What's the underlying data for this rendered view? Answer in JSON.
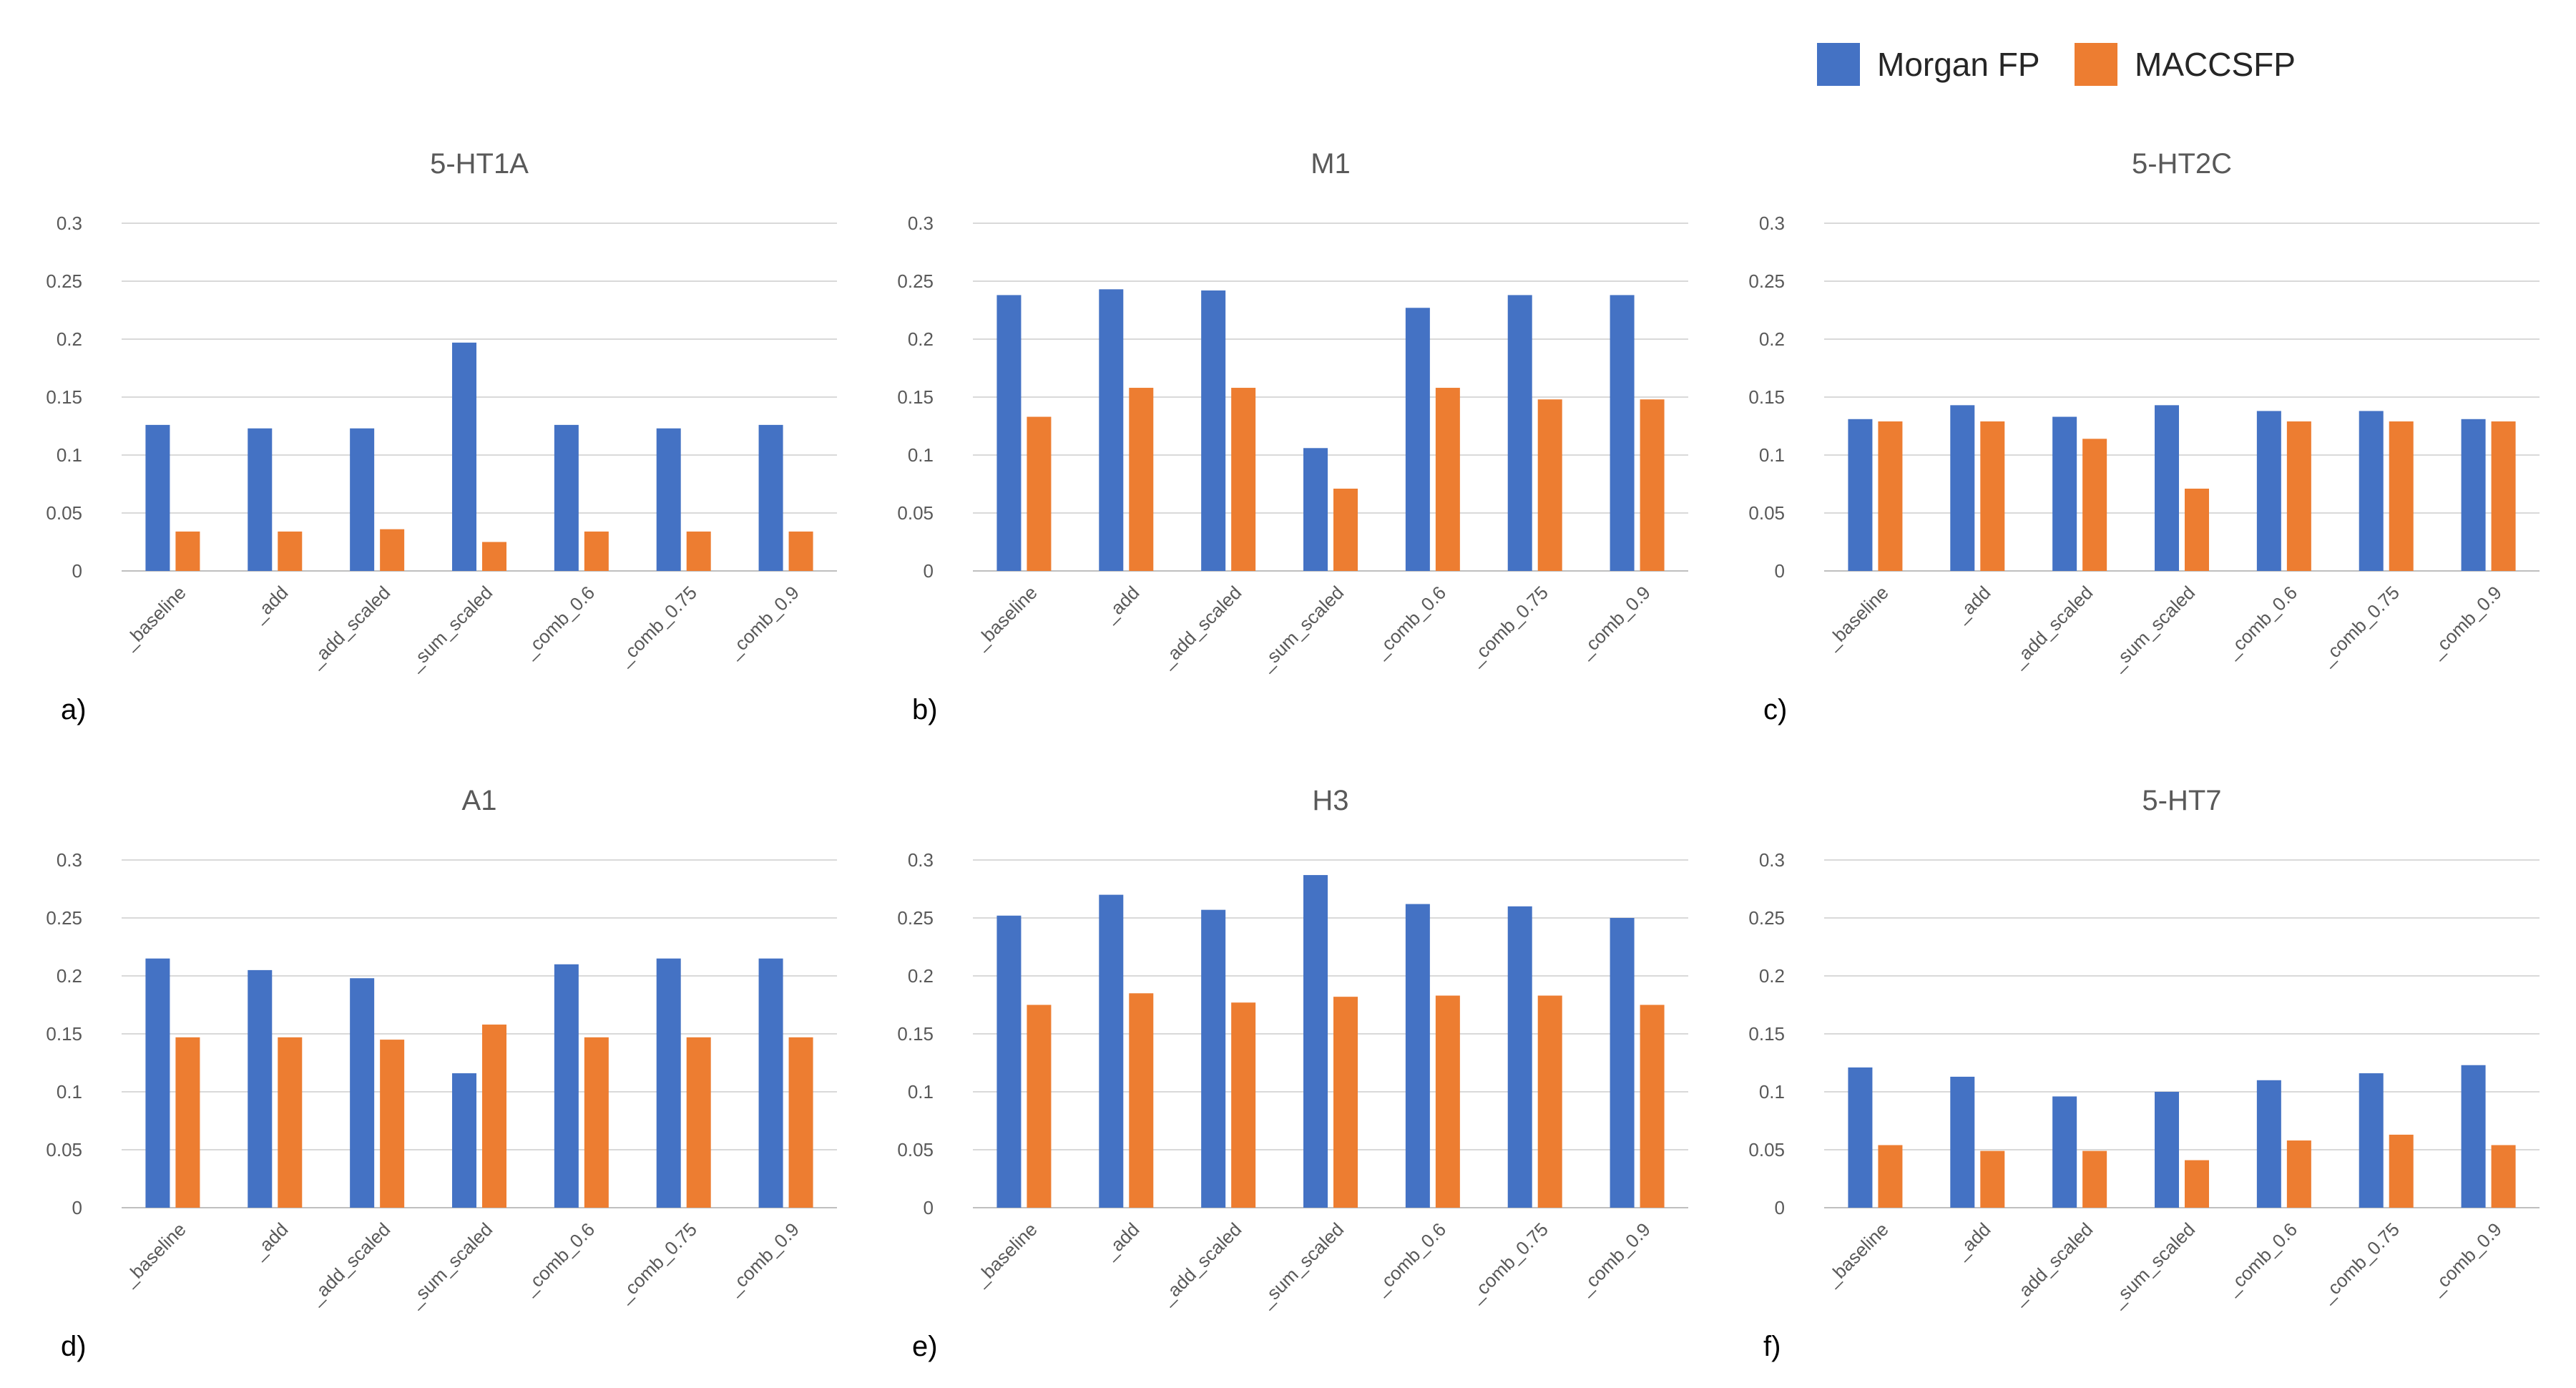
{
  "legend": {
    "items": [
      {
        "label": "Morgan FP",
        "color": "#4472C4"
      },
      {
        "label": "MACCSFP",
        "color": "#ED7D31"
      }
    ]
  },
  "panels": [
    {
      "letter": "a)"
    },
    {
      "letter": "b)"
    },
    {
      "letter": "c)"
    },
    {
      "letter": "d)"
    },
    {
      "letter": "e)"
    },
    {
      "letter": "f)"
    }
  ],
  "chart_data": [
    {
      "type": "bar",
      "title": "5-HT1A",
      "categories": [
        "_baseline",
        "_add",
        "_add_scaled",
        "_sum_scaled",
        "_comb_0.6",
        "_comb_0.75",
        "_comb_0.9"
      ],
      "series": [
        {
          "name": "Morgan FP",
          "color": "#4472C4",
          "values": [
            0.126,
            0.123,
            0.123,
            0.197,
            0.126,
            0.123,
            0.126
          ]
        },
        {
          "name": "MACCSFP",
          "color": "#ED7D31",
          "values": [
            0.034,
            0.034,
            0.036,
            0.025,
            0.034,
            0.034,
            0.034
          ]
        }
      ],
      "ylim": [
        0,
        0.3
      ],
      "yticks": [
        "0",
        "0.05",
        "0.1",
        "0.15",
        "0.2",
        "0.25",
        "0.3"
      ],
      "grid": true
    },
    {
      "type": "bar",
      "title": "M1",
      "categories": [
        "_baseline",
        "_add",
        "_add_scaled",
        "_sum_scaled",
        "_comb_0.6",
        "_comb_0.75",
        "_comb_0.9"
      ],
      "series": [
        {
          "name": "Morgan FP",
          "color": "#4472C4",
          "values": [
            0.238,
            0.243,
            0.242,
            0.106,
            0.227,
            0.238,
            0.238
          ]
        },
        {
          "name": "MACCSFP",
          "color": "#ED7D31",
          "values": [
            0.133,
            0.158,
            0.158,
            0.071,
            0.158,
            0.148,
            0.148
          ]
        }
      ],
      "ylim": [
        0,
        0.3
      ],
      "yticks": [
        "0",
        "0.05",
        "0.1",
        "0.15",
        "0.2",
        "0.25",
        "0.3"
      ],
      "grid": true
    },
    {
      "type": "bar",
      "title": "5-HT2C",
      "categories": [
        "_baseline",
        "_add",
        "_add_scaled",
        "_sum_scaled",
        "_comb_0.6",
        "_comb_0.75",
        "_comb_0.9"
      ],
      "series": [
        {
          "name": "Morgan FP",
          "color": "#4472C4",
          "values": [
            0.131,
            0.143,
            0.133,
            0.143,
            0.138,
            0.138,
            0.131
          ]
        },
        {
          "name": "MACCSFP",
          "color": "#ED7D31",
          "values": [
            0.129,
            0.129,
            0.114,
            0.071,
            0.129,
            0.129,
            0.129
          ]
        }
      ],
      "ylim": [
        0,
        0.3
      ],
      "yticks": [
        "0",
        "0.05",
        "0.1",
        "0.15",
        "0.2",
        "0.25",
        "0.3"
      ],
      "grid": true
    },
    {
      "type": "bar",
      "title": "A1",
      "categories": [
        "_baseline",
        "_add",
        "_add_scaled",
        "_sum_scaled",
        "_comb_0.6",
        "_comb_0.75",
        "_comb_0.9"
      ],
      "series": [
        {
          "name": "Morgan FP",
          "color": "#4472C4",
          "values": [
            0.215,
            0.205,
            0.198,
            0.116,
            0.21,
            0.215,
            0.215
          ]
        },
        {
          "name": "MACCSFP",
          "color": "#ED7D31",
          "values": [
            0.147,
            0.147,
            0.145,
            0.158,
            0.147,
            0.147,
            0.147
          ]
        }
      ],
      "ylim": [
        0,
        0.3
      ],
      "yticks": [
        "0",
        "0.05",
        "0.1",
        "0.15",
        "0.2",
        "0.25",
        "0.3"
      ],
      "grid": true
    },
    {
      "type": "bar",
      "title": "H3",
      "categories": [
        "_baseline",
        "_add",
        "_add_scaled",
        "_sum_scaled",
        "_comb_0.6",
        "_comb_0.75",
        "_comb_0.9"
      ],
      "series": [
        {
          "name": "Morgan FP",
          "color": "#4472C4",
          "values": [
            0.252,
            0.27,
            0.257,
            0.287,
            0.262,
            0.26,
            0.25
          ]
        },
        {
          "name": "MACCSFP",
          "color": "#ED7D31",
          "values": [
            0.175,
            0.185,
            0.177,
            0.182,
            0.183,
            0.183,
            0.175
          ]
        }
      ],
      "ylim": [
        0,
        0.3
      ],
      "yticks": [
        "0",
        "0.05",
        "0.1",
        "0.15",
        "0.2",
        "0.25",
        "0.3"
      ],
      "grid": true
    },
    {
      "type": "bar",
      "title": "5-HT7",
      "categories": [
        "_baseline",
        "_add",
        "_add_scaled",
        "_sum_scaled",
        "_comb_0.6",
        "_comb_0.75",
        "_comb_0.9"
      ],
      "series": [
        {
          "name": "Morgan FP",
          "color": "#4472C4",
          "values": [
            0.121,
            0.113,
            0.096,
            0.1,
            0.11,
            0.116,
            0.123
          ]
        },
        {
          "name": "MACCSFP",
          "color": "#ED7D31",
          "values": [
            0.054,
            0.049,
            0.049,
            0.041,
            0.058,
            0.063,
            0.054
          ]
        }
      ],
      "ylim": [
        0,
        0.3
      ],
      "yticks": [
        "0",
        "0.05",
        "0.1",
        "0.15",
        "0.2",
        "0.25",
        "0.3"
      ],
      "grid": true
    }
  ]
}
